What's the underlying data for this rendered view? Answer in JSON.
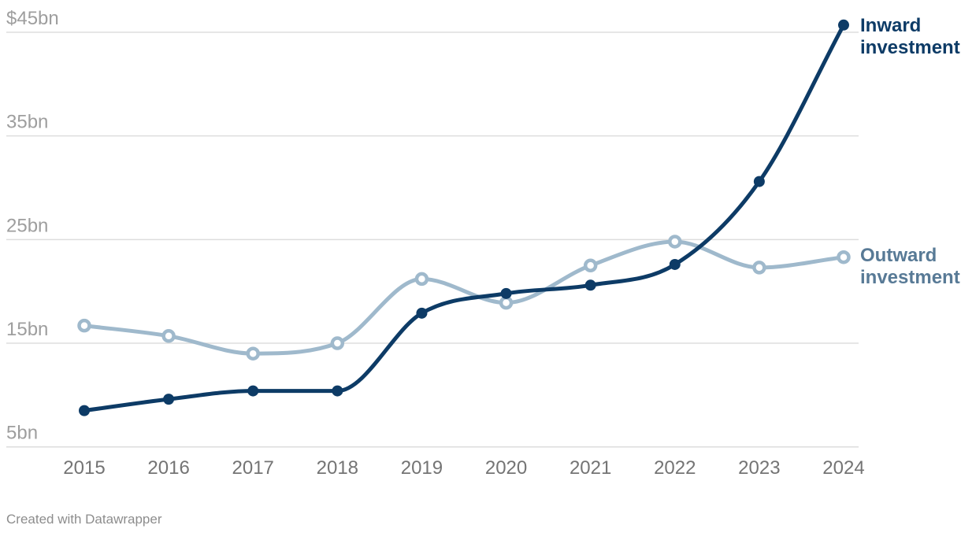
{
  "chart_data": {
    "type": "line",
    "title": "",
    "x": [
      2015,
      2016,
      2017,
      2018,
      2019,
      2020,
      2021,
      2022,
      2023,
      2024
    ],
    "x_labels": [
      "2015",
      "2016",
      "2017",
      "2018",
      "2019",
      "2020",
      "2021",
      "2022",
      "2023",
      "2024"
    ],
    "series": [
      {
        "name": "Inward investment",
        "values": [
          8.5,
          9.6,
          10.4,
          10.4,
          17.9,
          19.8,
          20.6,
          22.6,
          30.6,
          45.7
        ],
        "color": "#0d3b66",
        "label_color": "#0d3b66",
        "marker": "filled-dot"
      },
      {
        "name": "Outward investment",
        "values": [
          16.7,
          15.7,
          14.0,
          15.0,
          21.2,
          18.9,
          22.5,
          24.8,
          22.3,
          23.3
        ],
        "color": "#9fb9cc",
        "label_color": "#587a96",
        "marker": "open-dot"
      }
    ],
    "y_axis": {
      "unit": "$bn",
      "range": [
        5,
        45
      ],
      "ticks": [
        {
          "value": 5,
          "label": "5bn"
        },
        {
          "value": 15,
          "label": "15bn"
        },
        {
          "value": 25,
          "label": "25bn"
        },
        {
          "value": 35,
          "label": "35bn"
        },
        {
          "value": 45,
          "label": "$45bn"
        }
      ]
    },
    "grid": "horizontal-only",
    "curve": "monotone",
    "legend_position": "direct-labels-right-of-line-ends"
  },
  "footer": {
    "credit": "Created with Datawrapper"
  },
  "colors": {
    "background": "#ffffff",
    "gridline": "#dddddd",
    "y_tick_label": "#9e9e9e",
    "x_tick_label": "#747474",
    "credit": "#8d8d8d"
  }
}
